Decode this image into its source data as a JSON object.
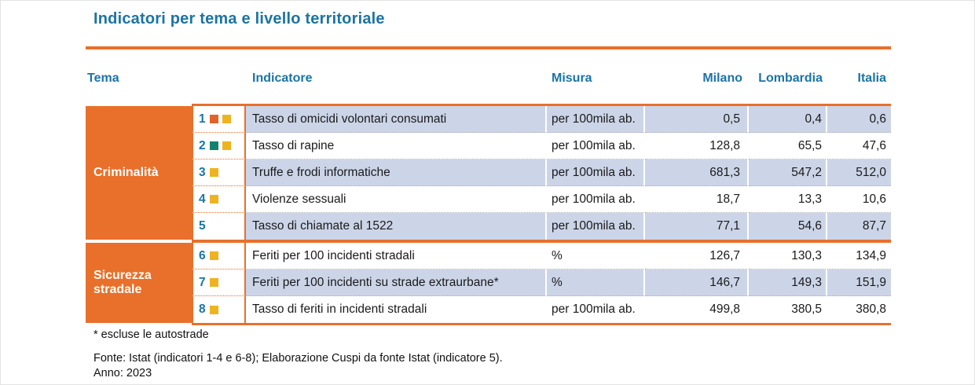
{
  "title": "Indicatori per tema e livello territoriale",
  "colors": {
    "accent_orange": "#E8702B",
    "header_blue": "#1B74A4",
    "row_alt_blue": "#CCD5E8",
    "marker_yellow": "#EFB321",
    "marker_orange": "#E2622A",
    "marker_green": "#13826B"
  },
  "header": {
    "tema": "Tema",
    "indicatore": "Indicatore",
    "misura": "Misura",
    "milano": "Milano",
    "lombardia": "Lombardia",
    "italia": "Italia"
  },
  "groups": [
    {
      "label": "Criminalità"
    },
    {
      "label": "Sicurezza stradale"
    }
  ],
  "rows": [
    {
      "num": "1",
      "markers": [
        "orange",
        "yellow"
      ],
      "indicatore": "Tasso di omicidi volontari consumati",
      "misura": "per 100mila ab.",
      "milano": "0,5",
      "lombardia": "0,4",
      "italia": "0,6"
    },
    {
      "num": "2",
      "markers": [
        "green",
        "yellow"
      ],
      "indicatore": "Tasso di rapine",
      "misura": "per 100mila ab.",
      "milano": "128,8",
      "lombardia": "65,5",
      "italia": "47,6"
    },
    {
      "num": "3",
      "markers": [
        "yellow"
      ],
      "indicatore": "Truffe e frodi informatiche",
      "misura": "per 100mila ab.",
      "milano": "681,3",
      "lombardia": "547,2",
      "italia": "512,0"
    },
    {
      "num": "4",
      "markers": [
        "yellow"
      ],
      "indicatore": "Violenze sessuali",
      "misura": "per 100mila ab.",
      "milano": "18,7",
      "lombardia": "13,3",
      "italia": "10,6"
    },
    {
      "num": "5",
      "markers": [],
      "indicatore": "Tasso di chiamate al 1522",
      "misura": "per 100mila ab.",
      "milano": "77,1",
      "lombardia": "54,6",
      "italia": "87,7"
    },
    {
      "num": "6",
      "markers": [
        "yellow"
      ],
      "indicatore": "Feriti per 100 incidenti stradali",
      "misura": "%",
      "milano": "126,7",
      "lombardia": "130,3",
      "italia": "134,9"
    },
    {
      "num": "7",
      "markers": [
        "yellow"
      ],
      "indicatore": "Feriti per 100 incidenti su strade extraurbane*",
      "misura": "%",
      "milano": "146,7",
      "lombardia": "149,3",
      "italia": "151,9"
    },
    {
      "num": "8",
      "markers": [
        "yellow"
      ],
      "indicatore": "Tasso di feriti in incidenti stradali",
      "misura": "per 100mila ab.",
      "milano": "499,8",
      "lombardia": "380,5",
      "italia": "380,8"
    }
  ],
  "footnotes": {
    "asterisk": "* escluse le autostrade",
    "fonte": "Fonte: Istat (indicatori 1-4 e 6-8); Elaborazione Cuspi da fonte Istat (indicatore 5).",
    "anno": "Anno: 2023"
  },
  "chart_data": {
    "type": "table",
    "title": "Indicatori per tema e livello territoriale",
    "columns": [
      "Tema",
      "Indicatore",
      "Misura",
      "Milano",
      "Lombardia",
      "Italia"
    ],
    "rows": [
      [
        "Criminalità",
        "Tasso di omicidi volontari consumati",
        "per 100mila ab.",
        0.5,
        0.4,
        0.6
      ],
      [
        "Criminalità",
        "Tasso di rapine",
        "per 100mila ab.",
        128.8,
        65.5,
        47.6
      ],
      [
        "Criminalità",
        "Truffe e frodi informatiche",
        "per 100mila ab.",
        681.3,
        547.2,
        512.0
      ],
      [
        "Criminalità",
        "Violenze sessuali",
        "per 100mila ab.",
        18.7,
        13.3,
        10.6
      ],
      [
        "Criminalità",
        "Tasso di chiamate al 1522",
        "per 100mila ab.",
        77.1,
        54.6,
        87.7
      ],
      [
        "Sicurezza stradale",
        "Feriti per 100 incidenti stradali",
        "%",
        126.7,
        130.3,
        134.9
      ],
      [
        "Sicurezza stradale",
        "Feriti per 100 incidenti su strade extraurbane*",
        "%",
        146.7,
        149.3,
        151.9
      ],
      [
        "Sicurezza stradale",
        "Tasso di feriti in incidenti stradali",
        "per 100mila ab.",
        499.8,
        380.5,
        380.8
      ]
    ],
    "notes": [
      "* escluse le autostrade",
      "Fonte: Istat (indicatori 1-4 e 6-8); Elaborazione Cuspi da fonte Istat (indicatore 5).",
      "Anno: 2023"
    ]
  }
}
